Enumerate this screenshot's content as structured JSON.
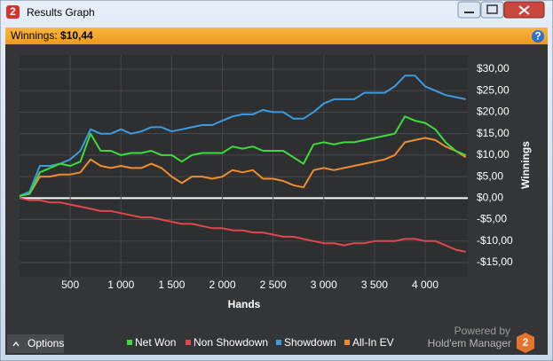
{
  "window": {
    "title": "Results Graph",
    "logo": "2",
    "summary_label": "Winnings:",
    "summary_value": "$10,44",
    "help": "?",
    "options": "Options",
    "powered_by": "Powered by",
    "brand": "Hold'em Manager"
  },
  "chart_data": {
    "type": "line",
    "x_label": "Hands",
    "y_label": "Winnings",
    "x": [
      0,
      100,
      200,
      300,
      400,
      500,
      600,
      700,
      800,
      900,
      1000,
      1100,
      1200,
      1300,
      1400,
      1500,
      1600,
      1700,
      1800,
      1900,
      2000,
      2100,
      2200,
      2300,
      2400,
      2500,
      2600,
      2700,
      2800,
      2900,
      3000,
      3100,
      3200,
      3300,
      3400,
      3500,
      3600,
      3700,
      3800,
      3900,
      4000,
      4100,
      4200,
      4300,
      4400
    ],
    "xlim": [
      0,
      4420
    ],
    "xticks": [
      500,
      {
        "value": 1000,
        "label": "1 000"
      },
      {
        "value": 1500,
        "label": "1 500"
      },
      {
        "value": 2000,
        "label": "2 000"
      },
      {
        "value": 2500,
        "label": "2 500"
      },
      {
        "value": 3000,
        "label": "3 000"
      },
      {
        "value": 3500,
        "label": "3 500"
      },
      {
        "value": 4000,
        "label": "4 000"
      }
    ],
    "ylim": [
      -18.3,
      33.3
    ],
    "yticks": [
      {
        "value": -15,
        "label": "-$15,00"
      },
      {
        "value": -10,
        "label": "-$10,00"
      },
      {
        "value": -5,
        "label": "-$5,00"
      },
      {
        "value": 0,
        "label": "$0,00"
      },
      {
        "value": 5,
        "label": "$5,00"
      },
      {
        "value": 10,
        "label": "$10,00"
      },
      {
        "value": 15,
        "label": "$15,00"
      },
      {
        "value": 20,
        "label": "$20,00"
      },
      {
        "value": 25,
        "label": "$25,00"
      },
      {
        "value": 30,
        "label": "$30,00"
      }
    ],
    "grid": true,
    "series": [
      {
        "name": "Net Won",
        "color": "#3ddc3d",
        "values": [
          0.5,
          1,
          6,
          7,
          8,
          7.5,
          8.5,
          15,
          11,
          11,
          10,
          10.5,
          10.5,
          11,
          10,
          10,
          8.5,
          10,
          10.5,
          10.5,
          10.5,
          12,
          11.5,
          12,
          11,
          11,
          11,
          9.5,
          8,
          12.5,
          13,
          12.5,
          13,
          13,
          13.5,
          14,
          14.5,
          15,
          19,
          18,
          17.5,
          16,
          13,
          11,
          10
        ]
      },
      {
        "name": "Non Showdown",
        "color": "#e0474c",
        "values": [
          0,
          -0.5,
          -0.5,
          -1,
          -1,
          -1.5,
          -2,
          -2.5,
          -3,
          -3,
          -3.5,
          -4,
          -4.5,
          -4.5,
          -5,
          -5.5,
          -6,
          -6,
          -6.5,
          -7,
          -7,
          -7.5,
          -7.5,
          -8,
          -8,
          -8.5,
          -9,
          -9,
          -9.5,
          -10,
          -10.5,
          -10.5,
          -11,
          -10.5,
          -10.5,
          -10,
          -10,
          -10,
          -9.5,
          -9.5,
          -10,
          -10,
          -11,
          -12,
          -12.5
        ]
      },
      {
        "name": "Showdown",
        "color": "#3c9ae0",
        "values": [
          0.5,
          1.5,
          7.5,
          7.5,
          8,
          9,
          11,
          16,
          15,
          15,
          16,
          15,
          15.5,
          16.5,
          16.5,
          15.5,
          16,
          16.5,
          17,
          17,
          18,
          19,
          19.5,
          19.5,
          20.5,
          20,
          20,
          18.5,
          18.5,
          20,
          22,
          23,
          23,
          23,
          24.5,
          24.5,
          24.5,
          26,
          28.5,
          28.5,
          26,
          25,
          24,
          23.5,
          23
        ]
      },
      {
        "name": "All-In EV",
        "color": "#f08c30",
        "values": [
          0.5,
          1,
          5,
          5,
          5.5,
          5.5,
          6,
          9,
          7.5,
          7,
          7.5,
          7,
          7,
          8,
          7,
          5,
          3.5,
          5,
          5,
          4.5,
          5,
          6.5,
          6,
          6.5,
          4.5,
          4.5,
          4,
          3,
          2.5,
          6.5,
          7,
          6.5,
          7,
          7.5,
          8,
          8.5,
          9,
          10,
          13,
          13.5,
          14,
          13.5,
          12,
          11,
          9.5
        ]
      }
    ]
  }
}
